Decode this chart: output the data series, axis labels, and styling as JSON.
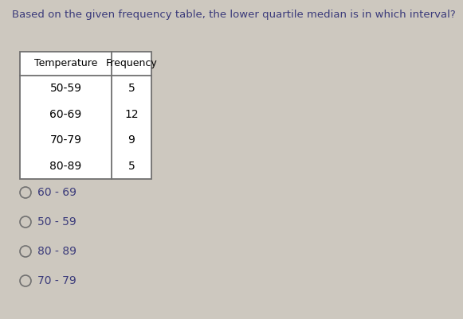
{
  "question": "Based on the given frequency table, the lower quartile median is in which interval?",
  "table_headers": [
    "Temperature",
    "Frequency"
  ],
  "table_rows": [
    [
      "50-59",
      "5"
    ],
    [
      "60-69",
      "12"
    ],
    [
      "70-79",
      "9"
    ],
    [
      "80-89",
      "5"
    ]
  ],
  "options": [
    "60 - 69",
    "50 - 59",
    "80 - 89",
    "70 - 79"
  ],
  "bg_color": "#cdc8bf",
  "text_color": "#3a3a7a",
  "question_fontsize": 9.5,
  "option_fontsize": 10,
  "table_fontsize": 10,
  "table_header_fontsize": 9
}
